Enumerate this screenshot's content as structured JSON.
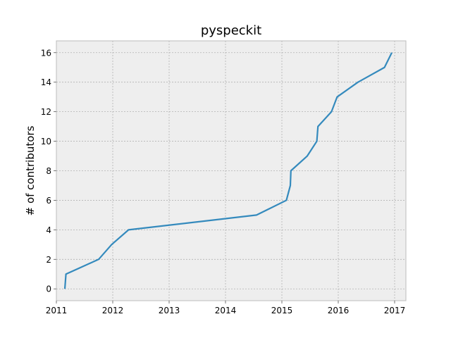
{
  "chart_data": {
    "type": "line",
    "title": "pyspeckit",
    "xlabel": "",
    "ylabel": "# of contributors",
    "xlim": [
      2011.0,
      2017.2
    ],
    "ylim": [
      -0.8,
      16.8
    ],
    "grid": true,
    "x_ticks": [
      {
        "value": 2011,
        "label": "2011"
      },
      {
        "value": 2012,
        "label": "2012"
      },
      {
        "value": 2013,
        "label": "2013"
      },
      {
        "value": 2014,
        "label": "2014"
      },
      {
        "value": 2015,
        "label": "2015"
      },
      {
        "value": 2016,
        "label": "2016"
      },
      {
        "value": 2017,
        "label": "2017"
      }
    ],
    "y_ticks": [
      {
        "value": 0,
        "label": "0"
      },
      {
        "value": 2,
        "label": "2"
      },
      {
        "value": 4,
        "label": "4"
      },
      {
        "value": 6,
        "label": "6"
      },
      {
        "value": 8,
        "label": "8"
      },
      {
        "value": 10,
        "label": "10"
      },
      {
        "value": 12,
        "label": "12"
      },
      {
        "value": 14,
        "label": "14"
      },
      {
        "value": 16,
        "label": "16"
      }
    ],
    "series": [
      {
        "color": "#348abd",
        "points": [
          {
            "x": 2011.15,
            "y": 0
          },
          {
            "x": 2011.17,
            "y": 1
          },
          {
            "x": 2011.75,
            "y": 2
          },
          {
            "x": 2011.98,
            "y": 3
          },
          {
            "x": 2012.28,
            "y": 4
          },
          {
            "x": 2014.55,
            "y": 5
          },
          {
            "x": 2015.08,
            "y": 6
          },
          {
            "x": 2015.15,
            "y": 7
          },
          {
            "x": 2015.16,
            "y": 8
          },
          {
            "x": 2015.45,
            "y": 9
          },
          {
            "x": 2015.62,
            "y": 10
          },
          {
            "x": 2015.64,
            "y": 11
          },
          {
            "x": 2015.88,
            "y": 12
          },
          {
            "x": 2015.98,
            "y": 13
          },
          {
            "x": 2016.35,
            "y": 14
          },
          {
            "x": 2016.82,
            "y": 15
          },
          {
            "x": 2016.95,
            "y": 16
          }
        ]
      }
    ]
  },
  "style": {
    "plot_background": "#eeeeee",
    "grid_color": "#b2b2b2",
    "axes_edge_color": "#bcbcbc"
  }
}
